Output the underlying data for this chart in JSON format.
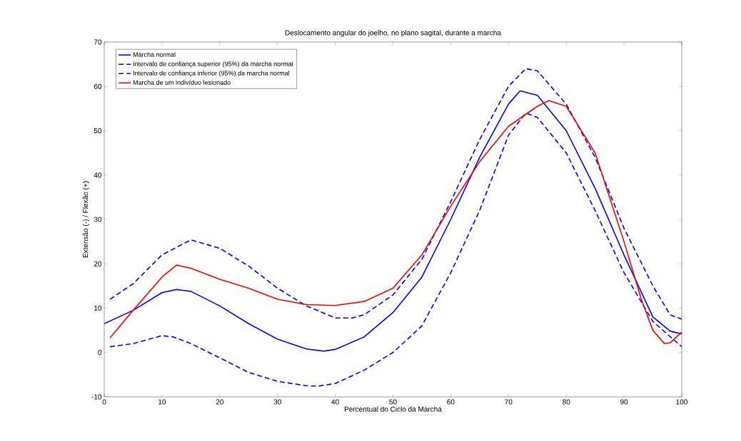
{
  "chart_data": {
    "type": "line",
    "title": "Deslocamento angular do joelho, no plano sagital, durante a marcha",
    "xlabel": "Percentual do Ciclo da Marcha",
    "ylabel": "Extensão (-) / Flexão (+)",
    "xlim": [
      0,
      100
    ],
    "ylim": [
      -10,
      70
    ],
    "xticks": [
      0,
      10,
      20,
      30,
      40,
      50,
      60,
      70,
      80,
      90,
      100
    ],
    "yticks": [
      -10,
      0,
      10,
      20,
      30,
      40,
      50,
      60,
      70
    ],
    "grid": false,
    "legend": "top left",
    "marker": "none",
    "series": [
      {
        "name": "Marcha normal",
        "color": "#0000ff",
        "line_style": "solid",
        "x": [
          0,
          5,
          10,
          12.5,
          15,
          20,
          25,
          30,
          35,
          38,
          40,
          45,
          50,
          55,
          60,
          65,
          70,
          72,
          75,
          80,
          85,
          90,
          95,
          98,
          100
        ],
        "values": [
          6.5,
          9.5,
          13.5,
          14.2,
          13.8,
          10.5,
          6.5,
          3,
          0.8,
          0.3,
          0.7,
          3.5,
          9,
          17,
          30,
          44,
          56,
          59,
          58,
          50,
          37,
          22,
          8,
          4.8,
          4.2
        ]
      },
      {
        "name": "Intervalo de confiança superior (95%) da marcha normal",
        "color": "#0000ff",
        "line_style": "dashed",
        "x": [
          1,
          5,
          10,
          15,
          20,
          25,
          30,
          35,
          40,
          43,
          45,
          50,
          55,
          60,
          65,
          70,
          73,
          75,
          80,
          85,
          90,
          95,
          98,
          100
        ],
        "values": [
          12,
          15.5,
          22,
          25.4,
          23.5,
          19.5,
          14.5,
          10.5,
          7.8,
          7.8,
          8.5,
          13,
          21,
          34,
          48,
          60,
          64,
          63.5,
          56,
          44,
          28,
          15,
          8.5,
          7.5
        ]
      },
      {
        "name": "Intervalo de confiança inferior (95%) da marcha normal",
        "color": "#0000ff",
        "line_style": "dashed",
        "x": [
          1,
          5,
          10,
          12,
          15,
          20,
          25,
          30,
          35,
          37,
          40,
          45,
          50,
          55,
          60,
          65,
          70,
          73,
          75,
          80,
          85,
          90,
          95,
          100
        ],
        "values": [
          1.3,
          2,
          3.8,
          3.5,
          2,
          -1.2,
          -4.5,
          -6.5,
          -7.5,
          -7.6,
          -7,
          -4,
          0,
          6,
          18,
          32,
          49,
          54,
          53,
          45,
          32,
          18,
          7,
          1.3
        ]
      },
      {
        "name": "Marcha de um indivíduo lesionado",
        "color": "#ff0000",
        "line_style": "solid",
        "x": [
          1,
          5,
          10,
          12.5,
          15,
          20,
          25,
          30,
          35,
          40,
          45,
          50,
          55,
          60,
          65,
          70,
          75,
          77,
          80,
          85,
          90,
          93,
          95,
          97,
          98,
          100
        ],
        "values": [
          3.3,
          9.5,
          17,
          19.7,
          19,
          16.5,
          14.5,
          12,
          10.8,
          10.6,
          11.5,
          14.5,
          22,
          33,
          43,
          51,
          55.5,
          56.8,
          55.5,
          45,
          25,
          12,
          5,
          2,
          2.2,
          4.6
        ]
      }
    ]
  }
}
